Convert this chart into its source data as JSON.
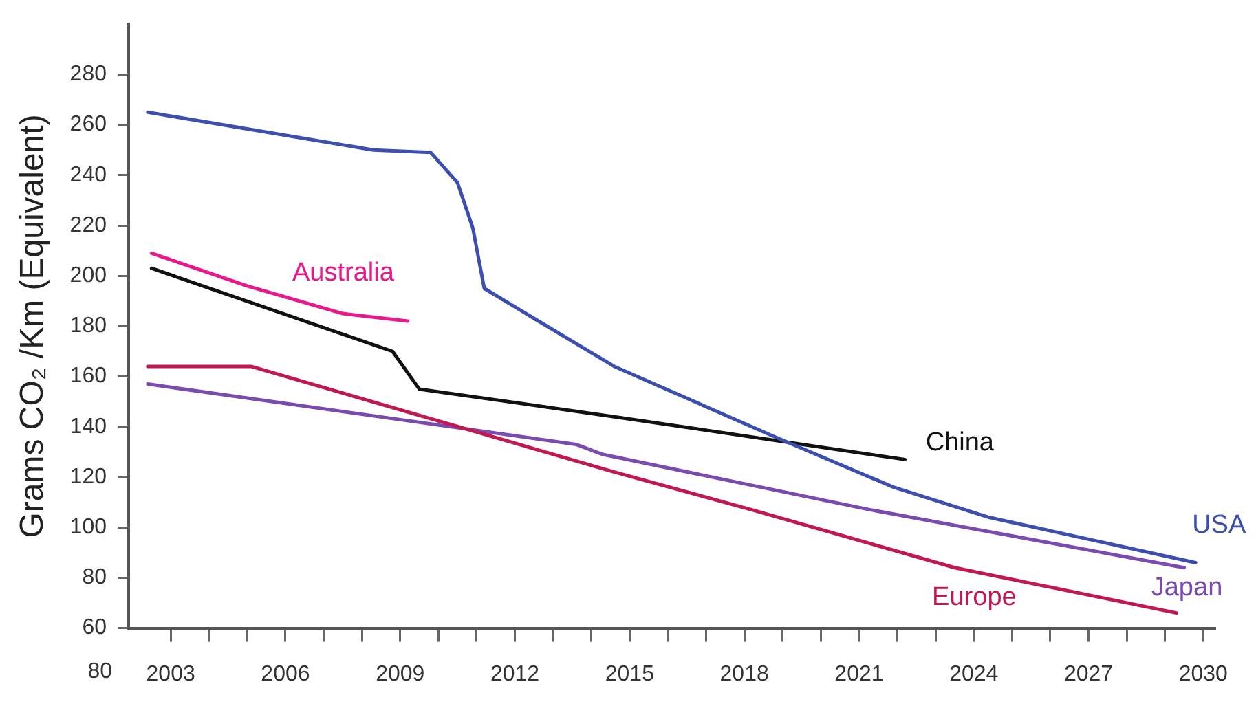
{
  "chart_data": {
    "type": "line",
    "ylabel": "Grams CO₂ /Km (Equivalent)",
    "annotations": [
      "80"
    ],
    "xlim": [
      2001.9,
      2030.3
    ],
    "xticks": [
      2003,
      {
        "value": 2004,
        "label": null
      },
      {
        "value": 2005,
        "label": null
      },
      2006,
      {
        "value": 2007,
        "label": null
      },
      {
        "value": 2008,
        "label": null
      },
      2009,
      {
        "value": 2010,
        "label": null
      },
      {
        "value": 2011,
        "label": null
      },
      2012,
      {
        "value": 2013,
        "label": null
      },
      {
        "value": 2014,
        "label": null
      },
      2015,
      {
        "value": 2016,
        "label": null
      },
      {
        "value": 2017,
        "label": null
      },
      2018,
      {
        "value": 2019,
        "label": null
      },
      {
        "value": 2020,
        "label": null
      },
      2021,
      {
        "value": 2022,
        "label": null
      },
      {
        "value": 2023,
        "label": null
      },
      2024,
      {
        "value": 2025,
        "label": null
      },
      {
        "value": 2026,
        "label": null
      },
      2027,
      {
        "value": 2028,
        "label": null
      },
      {
        "value": 2029,
        "label": null
      },
      2030
    ],
    "ylim": [
      60,
      300
    ],
    "yticks": [
      60,
      80,
      100,
      120,
      140,
      160,
      180,
      200,
      220,
      240,
      260,
      280
    ],
    "grid": false,
    "legend": false,
    "marker": "none",
    "line_style": "solid",
    "series": [
      {
        "name": "USA",
        "color": "#3c4fb0",
        "x": [
          2002.4,
          2008.3,
          2009.8,
          2010.5,
          2010.9,
          2011.2,
          2012.4,
          2014.6,
          2018.8,
          2021.9,
          2024.4,
          2029.8
        ],
        "values": [
          265,
          250,
          249,
          237,
          219,
          195,
          184,
          164,
          136,
          116,
          104,
          86
        ]
      },
      {
        "name": "Australia",
        "color": "#e8198b",
        "x": [
          2002.5,
          2005.0,
          2007.5,
          2009.2
        ],
        "values": [
          209,
          196,
          185,
          182
        ]
      },
      {
        "name": "China",
        "color": "#111111",
        "x": [
          2002.5,
          2008.8,
          2009.5,
          2014.6,
          2022.2
        ],
        "values": [
          203,
          170,
          155,
          144,
          127
        ]
      },
      {
        "name": "Europe",
        "color": "#c0184f",
        "x": [
          2002.4,
          2005.1,
          2014.6,
          2018.2,
          2023.5,
          2029.3
        ],
        "values": [
          164,
          164,
          122,
          107,
          84,
          66
        ]
      },
      {
        "name": "Japan",
        "color": "#7a4ab0",
        "x": [
          2002.4,
          2013.6,
          2014.3,
          2021.3,
          2029.5
        ],
        "values": [
          157,
          133,
          129,
          107,
          84
        ]
      }
    ]
  }
}
